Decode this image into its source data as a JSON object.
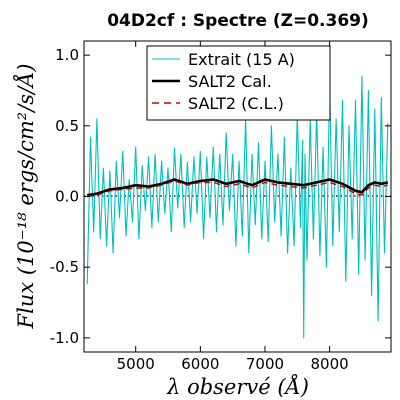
{
  "chart_data": {
    "type": "line",
    "title": "04D2cf : Spectre (Z=0.369)",
    "xlabel": "λ observé (Å)",
    "ylabel": "Flux (10⁻¹⁸ ergs/cm²/s/Å)",
    "xlim": [
      4200,
      8950
    ],
    "ylim": [
      -1.1,
      1.1
    ],
    "x_ticks": [
      5000,
      6000,
      7000,
      8000
    ],
    "y_ticks": [
      1.0,
      0.5,
      0.0,
      -0.5,
      -1.0
    ],
    "x_tick_labels": [
      "5000",
      "6000",
      "7000",
      "8000"
    ],
    "y_tick_labels": [
      "1.0",
      "0.5",
      "0.0",
      "-0.5",
      "-1.0"
    ],
    "legend_position": "top-center",
    "zero_line": true,
    "colors": {
      "extrait": "#00bfbf",
      "salt2_cal": "#000000",
      "salt2_cl": "#cc0000"
    },
    "series": [
      {
        "name": "Extrait (15 A)",
        "style": "solid-thin",
        "x": [
          4250,
          4300,
          4350,
          4400,
          4450,
          4500,
          4550,
          4600,
          4650,
          4700,
          4750,
          4800,
          4850,
          4900,
          4950,
          5000,
          5050,
          5100,
          5150,
          5200,
          5250,
          5300,
          5350,
          5400,
          5450,
          5500,
          5550,
          5600,
          5650,
          5700,
          5750,
          5800,
          5850,
          5900,
          5950,
          6000,
          6050,
          6100,
          6150,
          6200,
          6250,
          6300,
          6350,
          6400,
          6450,
          6500,
          6550,
          6600,
          6650,
          6700,
          6750,
          6800,
          6850,
          6900,
          6950,
          7000,
          7050,
          7100,
          7150,
          7200,
          7250,
          7300,
          7350,
          7400,
          7450,
          7500,
          7550,
          7580,
          7600,
          7620,
          7650,
          7700,
          7750,
          7800,
          7850,
          7900,
          7950,
          8000,
          8050,
          8100,
          8150,
          8200,
          8250,
          8300,
          8350,
          8400,
          8450,
          8500,
          8550,
          8600,
          8650,
          8700,
          8750,
          8800,
          8850,
          8900
        ],
        "y": [
          -0.62,
          0.42,
          -0.25,
          0.55,
          -0.3,
          0.2,
          -0.35,
          0.18,
          -0.4,
          0.25,
          -0.15,
          0.32,
          -0.28,
          0.12,
          -0.18,
          0.35,
          -0.3,
          0.22,
          -0.1,
          0.28,
          -0.22,
          0.3,
          -0.18,
          0.25,
          -0.12,
          0.2,
          -0.25,
          0.34,
          -0.08,
          0.3,
          -0.22,
          0.24,
          -0.18,
          0.28,
          -0.12,
          0.32,
          -0.3,
          0.28,
          -0.15,
          0.35,
          -0.25,
          0.3,
          -0.2,
          0.45,
          -0.1,
          0.3,
          -0.35,
          0.25,
          -0.28,
          0.55,
          -0.4,
          0.3,
          -0.2,
          0.38,
          -0.3,
          0.25,
          -0.32,
          0.5,
          -0.18,
          0.3,
          -0.28,
          0.42,
          -0.4,
          0.2,
          -0.35,
          0.58,
          -0.22,
          0.4,
          -1.0,
          0.3,
          -0.45,
          0.55,
          -0.3,
          0.6,
          -0.42,
          0.35,
          -0.5,
          0.78,
          -0.35,
          0.55,
          -0.25,
          0.68,
          -0.6,
          0.5,
          -0.3,
          0.68,
          -0.55,
          0.85,
          -0.45,
          0.75,
          -0.7,
          0.62,
          -0.88,
          0.7,
          -0.4,
          0.52
        ]
      },
      {
        "name": "SALT2 Cal.",
        "style": "solid-thick",
        "x": [
          4250,
          4400,
          4600,
          4800,
          5000,
          5200,
          5400,
          5600,
          5800,
          6000,
          6200,
          6400,
          6600,
          6800,
          7000,
          7200,
          7400,
          7600,
          7800,
          8000,
          8200,
          8400,
          8500,
          8600,
          8700,
          8800,
          8900
        ],
        "y": [
          0.01,
          0.02,
          0.05,
          0.06,
          0.08,
          0.07,
          0.09,
          0.12,
          0.09,
          0.11,
          0.12,
          0.09,
          0.11,
          0.08,
          0.12,
          0.1,
          0.09,
          0.08,
          0.1,
          0.12,
          0.09,
          0.04,
          0.03,
          0.08,
          0.1,
          0.09,
          0.1
        ]
      },
      {
        "name": "SALT2 (C.L.)",
        "style": "dashed",
        "x": [
          4250,
          4400,
          4600,
          4800,
          5000,
          5200,
          5400,
          5600,
          5800,
          6000,
          6200,
          6400,
          6600,
          6800,
          7000,
          7200,
          7400,
          7600,
          7800,
          8000,
          8200,
          8400,
          8500,
          8600,
          8700,
          8800,
          8900
        ],
        "y": [
          0.0,
          0.01,
          0.04,
          0.05,
          0.06,
          0.06,
          0.08,
          0.11,
          0.08,
          0.1,
          0.1,
          0.07,
          0.09,
          0.06,
          0.1,
          0.08,
          0.07,
          0.06,
          0.08,
          0.1,
          0.07,
          0.02,
          0.01,
          0.06,
          0.08,
          0.07,
          0.08
        ]
      }
    ]
  }
}
